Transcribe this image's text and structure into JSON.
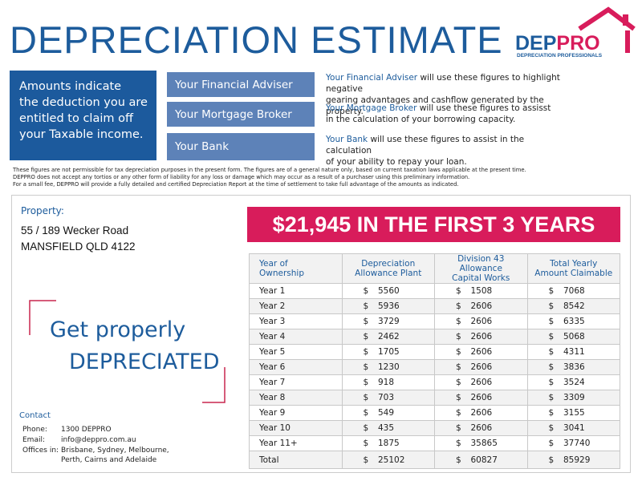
{
  "header": {
    "title": "DEPRECIATION ESTIMATE",
    "logo_part1": "DEP",
    "logo_part2": "PRO",
    "logo_tagline": "DEPRECIATION PROFESSIONALS"
  },
  "intro": {
    "lines": [
      "Amounts indicate",
      "the deduction you are",
      "entitled to claim off",
      "your Taxable income."
    ]
  },
  "advisers": [
    {
      "button": "Your Financial Adviser",
      "lead": "Your Financial Adviser",
      "lines": [
        "will use these figures to highlight negative",
        "gearing advantages and cashflow generated by the property."
      ]
    },
    {
      "button": "Your Mortgage Broker",
      "lead": "Your Mortgage Broker",
      "lines": [
        "will use these figures to assisst",
        "in the calculation of your borrowing capacity."
      ]
    },
    {
      "button": "Your Bank",
      "lead": "Your Bank",
      "lines": [
        "will use these figures to assist in the calculation",
        "of your ability to repay your loan."
      ]
    }
  ],
  "disclaimer": {
    "lines": [
      "These figures are not permissible for tax depreciation purposes in the present form. The figures are of a general nature only, based on current taxation laws applicable at the present time.",
      "DEPPRO does not accept any tortios or any other form of liability for any loss or damage which may occur as a result of a purchaser using this preliminary information.",
      "For a small fee, DEPPRO will provide a fully detailed and certified Depreciation Report at the time of settlement to take full advantage of the amounts as indicated."
    ]
  },
  "property": {
    "label": "Property:",
    "address": [
      "55 / 189 Wecker Road",
      "MANSFIELD QLD 4122"
    ]
  },
  "headline": "$21,945 IN THE FIRST 3 YEARS",
  "slogan": {
    "line1": "Get properly",
    "line2": "DEPRECIATED"
  },
  "contact": {
    "title": "Contact",
    "rows": [
      {
        "label": "Phone:",
        "lines": [
          "1300 DEPPRO"
        ]
      },
      {
        "label": "Email:",
        "lines": [
          "info@deppro.com.au"
        ]
      },
      {
        "label": "Offices in:",
        "lines": [
          "Brisbane, Sydney, Melbourne,",
          "Perth, Cairns and Adelaide"
        ]
      }
    ]
  },
  "table": {
    "headers": [
      [
        "Year of",
        "Ownership"
      ],
      [
        "Depreciation",
        "Allowance Plant"
      ],
      [
        "Division 43 Allowance",
        "Capital Works"
      ],
      [
        "Total Yearly",
        "Amount Claimable"
      ]
    ],
    "currency": "$",
    "rows": [
      [
        "Year 1",
        5560,
        1508,
        7068
      ],
      [
        "Year 2",
        5936,
        2606,
        8542
      ],
      [
        "Year 3",
        3729,
        2606,
        6335
      ],
      [
        "Year 4",
        2462,
        2606,
        5068
      ],
      [
        "Year 5",
        1705,
        2606,
        4311
      ],
      [
        "Year 6",
        1230,
        2606,
        3836
      ],
      [
        "Year 7",
        918,
        2606,
        3524
      ],
      [
        "Year 8",
        703,
        2606,
        3309
      ],
      [
        "Year 9",
        549,
        2606,
        3155
      ],
      [
        "Year 10",
        435,
        2606,
        3041
      ],
      [
        "Year 11+",
        1875,
        35865,
        37740
      ],
      [
        "Total",
        25102,
        60827,
        85929
      ]
    ]
  }
}
